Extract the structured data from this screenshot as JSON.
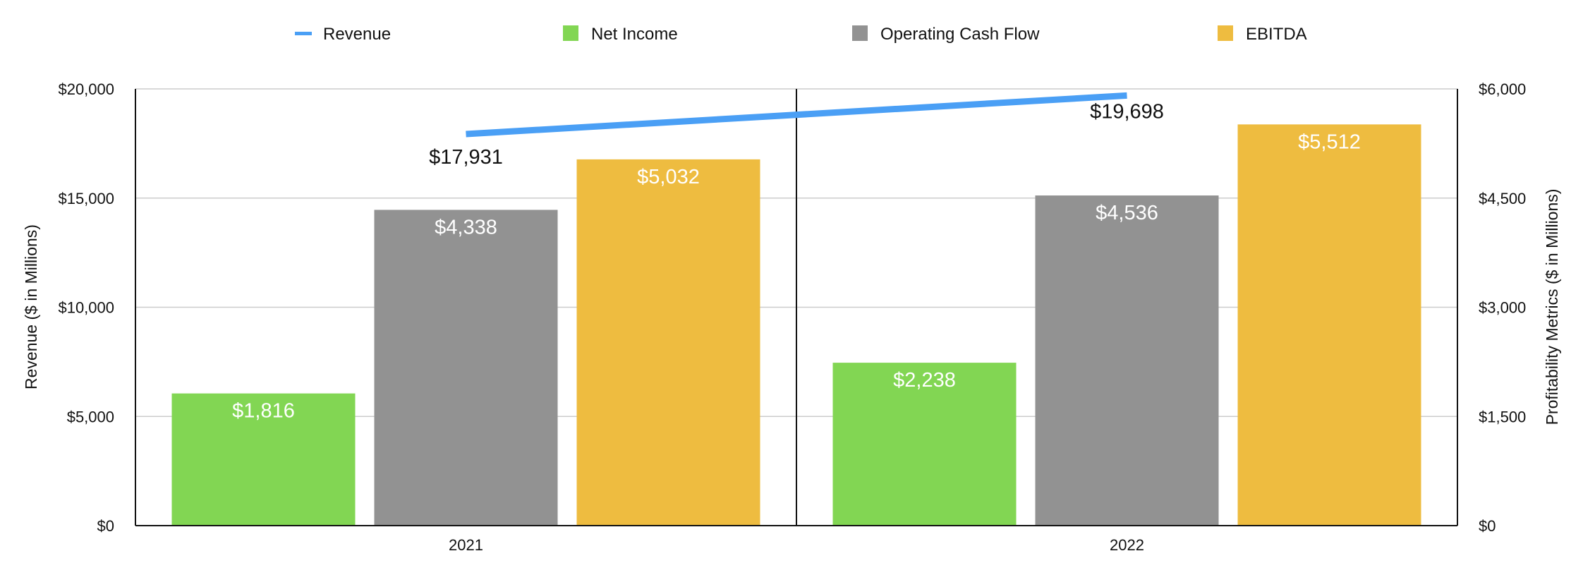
{
  "chart_data": {
    "type": "bar",
    "categories": [
      "2021",
      "2022"
    ],
    "y_left": {
      "label": "Revenue ($ in Millions)",
      "range": [
        0,
        20000
      ],
      "ticks": [
        "$0",
        "$5,000",
        "$10,000",
        "$15,000",
        "$20,000"
      ]
    },
    "y_right": {
      "label": "Profitability Metrics ($ in Millions)",
      "range": [
        0,
        6000
      ],
      "ticks": [
        "$0",
        "$1,500",
        "$3,000",
        "$4,500",
        "$6,000"
      ]
    },
    "series": [
      {
        "name": "Revenue",
        "kind": "line",
        "axis": "left",
        "color": "#4a9ff5",
        "values": [
          17931,
          19698
        ],
        "labels": [
          "$17,931",
          "$19,698"
        ]
      },
      {
        "name": "Net Income",
        "kind": "bar",
        "axis": "right",
        "color": "#82d653",
        "values": [
          1816,
          2238
        ],
        "labels": [
          "$1,816",
          "$2,238"
        ]
      },
      {
        "name": "Operating Cash Flow",
        "kind": "bar",
        "axis": "right",
        "color": "#929292",
        "values": [
          4338,
          4536
        ],
        "labels": [
          "$4,338",
          "$4,536"
        ]
      },
      {
        "name": "EBITDA",
        "kind": "bar",
        "axis": "right",
        "color": "#eebc40",
        "values": [
          5032,
          5512
        ],
        "labels": [
          "$5,032",
          "$5,512"
        ]
      }
    ],
    "grid": true,
    "legend": "top"
  }
}
